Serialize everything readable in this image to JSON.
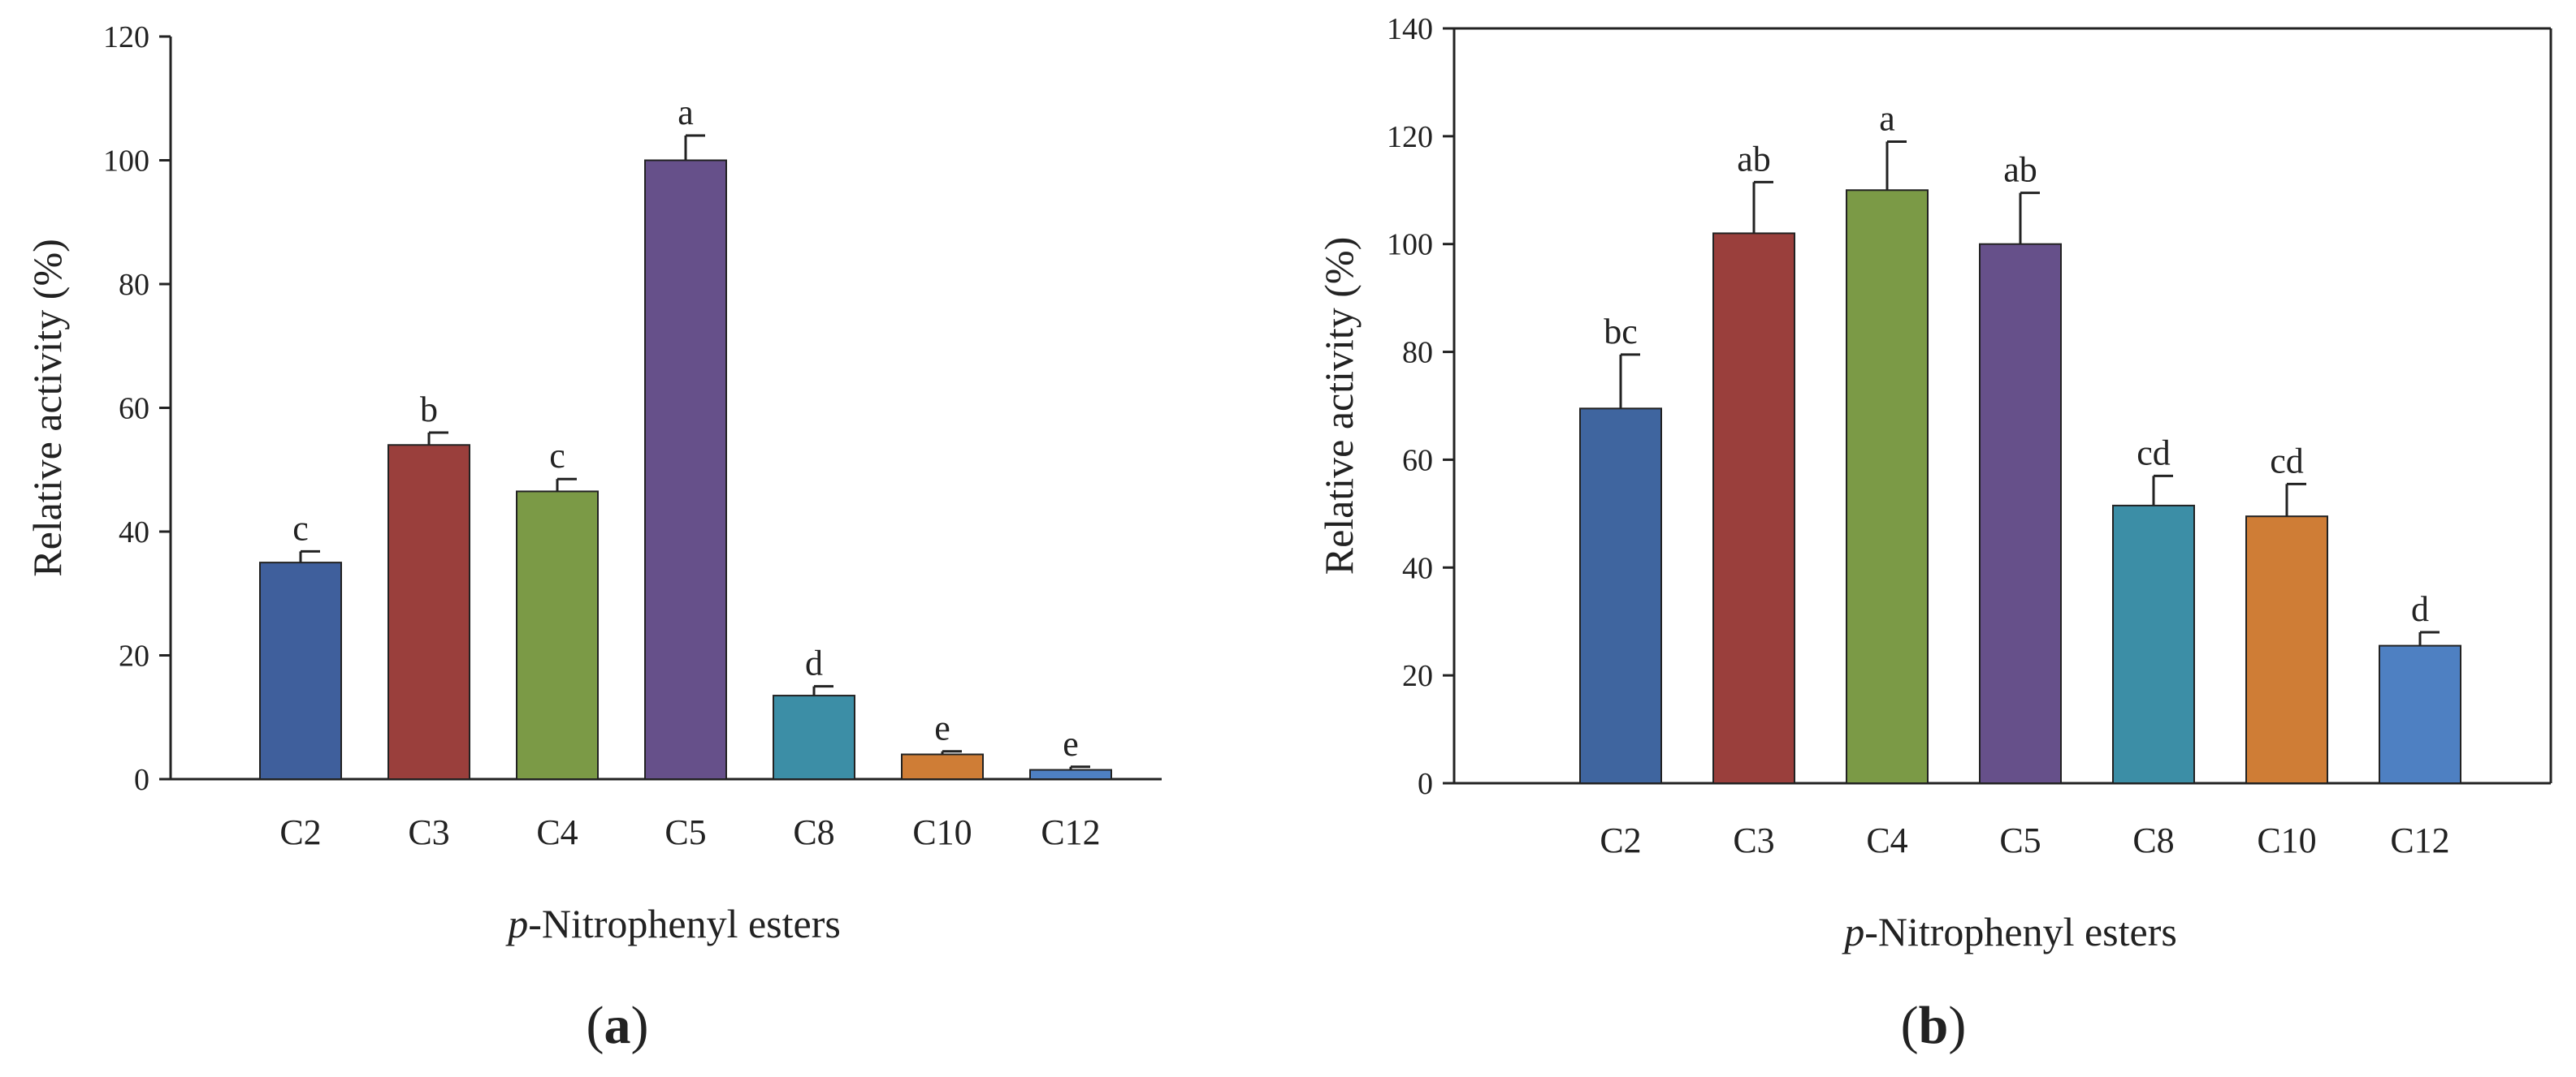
{
  "chart_data": [
    {
      "type": "bar",
      "panel_label": "a",
      "xlabel_prefix": "p",
      "xlabel_rest": "-Nitrophenyl esters",
      "ylabel": "Relative activity (%)",
      "ylim": [
        0,
        120
      ],
      "yticks": [
        0,
        20,
        40,
        60,
        80,
        100,
        120
      ],
      "categories": [
        "C2",
        "C3",
        "C4",
        "C5",
        "C8",
        "C10",
        "C12"
      ],
      "values": [
        35,
        54,
        46.5,
        100,
        13.5,
        4,
        1.5
      ],
      "errors": [
        1.8,
        2.0,
        2.0,
        4.0,
        1.5,
        0.5,
        0.5
      ],
      "significance": [
        "c",
        "b",
        "c",
        "a",
        "d",
        "e",
        "e"
      ],
      "colors": [
        "#3f5f9c",
        "#9a3f3c",
        "#7b9a46",
        "#66508a",
        "#3c8ea6",
        "#cf7d36",
        "#4e80c2"
      ],
      "box": "open"
    },
    {
      "type": "bar",
      "panel_label": "b",
      "xlabel_prefix": "p",
      "xlabel_rest": "-Nitrophenyl esters",
      "ylabel": "Relative activity (%)",
      "ylim": [
        0,
        140
      ],
      "yticks": [
        0,
        20,
        40,
        60,
        80,
        100,
        120,
        140
      ],
      "categories": [
        "C2",
        "C3",
        "C4",
        "C5",
        "C8",
        "C10",
        "C12"
      ],
      "values": [
        69.5,
        102,
        110,
        100,
        51.5,
        49.5,
        25.5
      ],
      "errors": [
        10,
        9.5,
        9,
        9.5,
        5.5,
        6,
        2.5
      ],
      "significance": [
        "bc",
        "ab",
        "a",
        "ab",
        "cd",
        "cd",
        "d"
      ],
      "colors": [
        "#3f659f",
        "#9a3f3c",
        "#7b9a46",
        "#66508a",
        "#3c8ea6",
        "#cf7d36",
        "#4e80c2"
      ],
      "box": "closed"
    }
  ]
}
